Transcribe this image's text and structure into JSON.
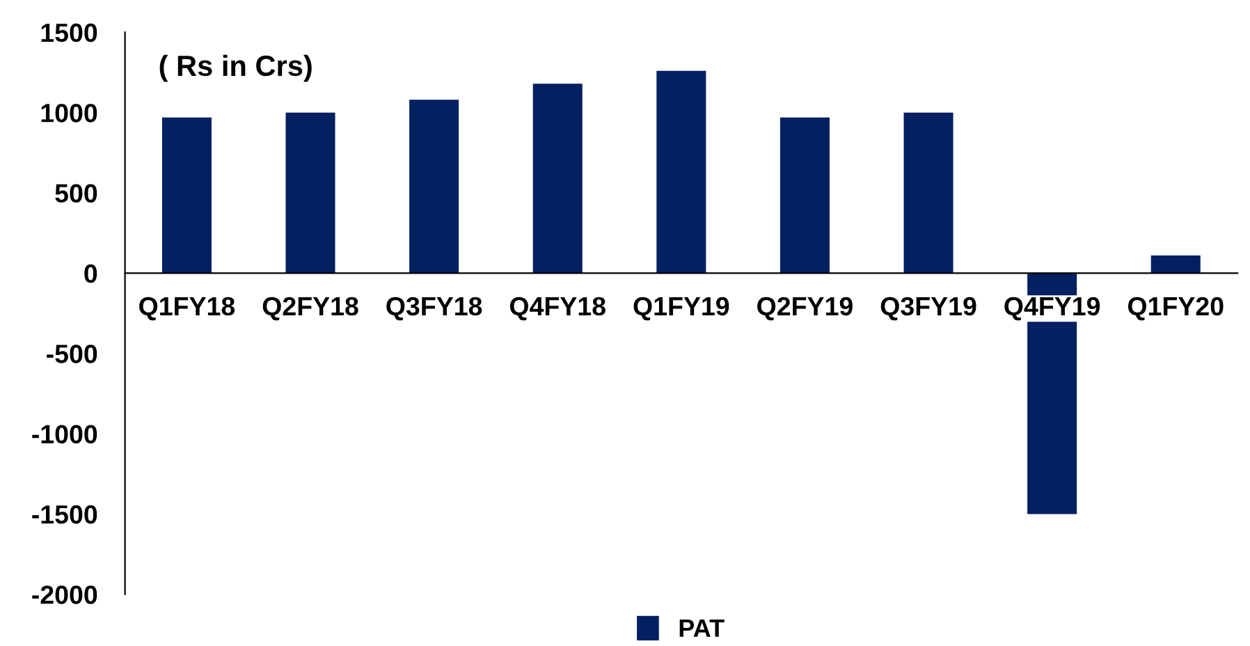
{
  "chart_data": {
    "type": "bar",
    "categories": [
      "Q1FY18",
      "Q2FY18",
      "Q3FY18",
      "Q4FY18",
      "Q1FY19",
      "Q2FY19",
      "Q3FY19",
      "Q4FY19",
      "Q1FY20"
    ],
    "series": [
      {
        "name": "PAT",
        "color": "#032060",
        "values": [
          970,
          1000,
          1080,
          1180,
          1260,
          970,
          1000,
          -1500,
          110
        ]
      }
    ],
    "ylim": [
      -2000,
      1500
    ],
    "yticks": [
      -2000,
      -1500,
      -1000,
      -500,
      0,
      500,
      1000,
      1500
    ],
    "annotations": [
      "( Rs in Crs)"
    ],
    "legend": "bottom",
    "grid": false
  }
}
